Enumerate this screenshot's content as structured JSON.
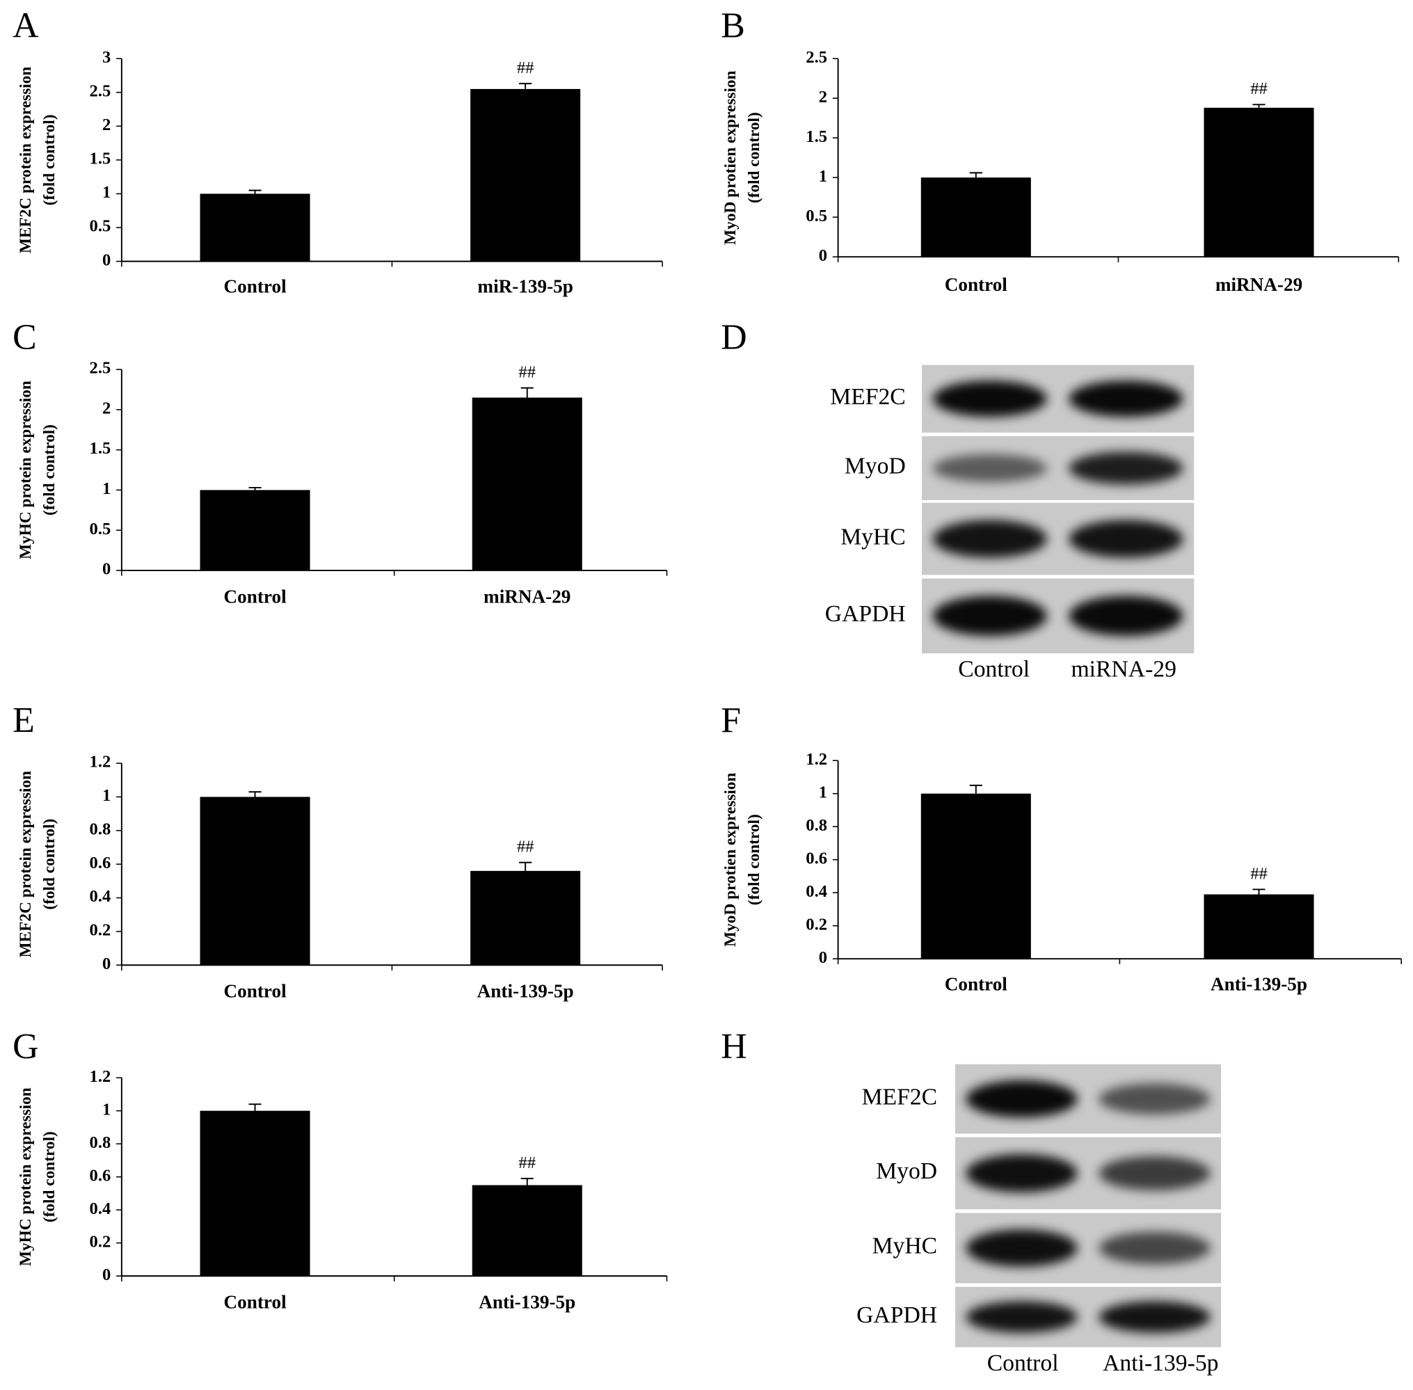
{
  "chart_data": [
    {
      "type": "bar",
      "panel": "A",
      "ylabel": [
        "MEF2C protein expression",
        "(fold control)"
      ],
      "categories": [
        "Control",
        "miR-139-5p"
      ],
      "values": [
        1,
        2.55
      ],
      "errors": [
        0.05,
        0.08
      ],
      "annotation": "##",
      "color": "#000000",
      "ylim": [
        0,
        3
      ],
      "yticks": [
        0,
        0.5,
        1,
        1.5,
        2,
        2.5,
        3
      ]
    },
    {
      "type": "bar",
      "panel": "B",
      "ylabel": [
        "MyoD protien expression",
        "(fold control)"
      ],
      "categories": [
        "Control",
        "miRNA-29"
      ],
      "values": [
        1,
        1.88
      ],
      "errors": [
        0.06,
        0.04
      ],
      "annotation": "##",
      "color": "#000000",
      "ylim": [
        0,
        2.5
      ],
      "yticks": [
        0,
        0.5,
        1,
        1.5,
        2,
        2.5
      ]
    },
    {
      "type": "bar",
      "panel": "C",
      "ylabel": [
        "MyHC protein expression",
        "(fold control)"
      ],
      "categories": [
        "Control",
        "miRNA-29"
      ],
      "values": [
        1,
        2.15
      ],
      "errors": [
        0.03,
        0.12
      ],
      "annotation": "##",
      "color": "#000000",
      "ylim": [
        0,
        2.5
      ],
      "yticks": [
        0,
        0.5,
        1,
        1.5,
        2,
        2.5
      ]
    },
    {
      "type": "bar",
      "panel": "E",
      "ylabel": [
        "MEF2C protein expression",
        "(fold control)"
      ],
      "categories": [
        "Control",
        "Anti-139-5p"
      ],
      "values": [
        1,
        0.56
      ],
      "errors": [
        0.03,
        0.05
      ],
      "annotation": "##",
      "color": "#000000",
      "ylim": [
        0,
        1.2
      ],
      "yticks": [
        0,
        0.2,
        0.4,
        0.6,
        0.8,
        1,
        1.2
      ]
    },
    {
      "type": "bar",
      "panel": "F",
      "ylabel": [
        "MyoD protien expression",
        "(fold control)"
      ],
      "categories": [
        "Control",
        "Anti-139-5p"
      ],
      "values": [
        1,
        0.39
      ],
      "errors": [
        0.05,
        0.03
      ],
      "annotation": "##",
      "color": "#000000",
      "ylim": [
        0,
        1.2
      ],
      "yticks": [
        0,
        0.2,
        0.4,
        0.6,
        0.8,
        1,
        1.2
      ]
    },
    {
      "type": "bar",
      "panel": "G",
      "ylabel": [
        "MyHC protein expression",
        "(fold control)"
      ],
      "categories": [
        "Control",
        "Anti-139-5p"
      ],
      "values": [
        1,
        0.55
      ],
      "errors": [
        0.04,
        0.04
      ],
      "annotation": "##",
      "color": "#000000",
      "ylim": [
        0,
        1.2
      ],
      "yticks": [
        0,
        0.2,
        0.4,
        0.6,
        0.8,
        1,
        1.2
      ]
    }
  ],
  "blots": [
    {
      "panel": "D",
      "rows": [
        "MEF2C",
        "MyoD",
        "MyHC",
        "GAPDH"
      ],
      "columns": [
        "Control",
        "miRNA-29"
      ]
    },
    {
      "panel": "H",
      "rows": [
        "MEF2C",
        "MyoD",
        "MyHC",
        "GAPDH"
      ],
      "columns": [
        "Control",
        "Anti-139-5p"
      ]
    }
  ]
}
